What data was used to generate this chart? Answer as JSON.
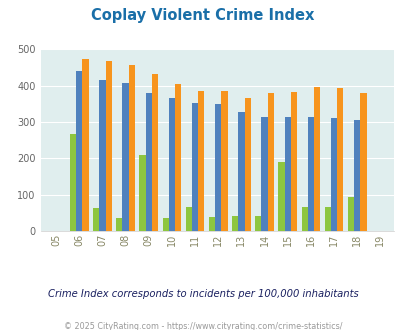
{
  "title": "Coplay Violent Crime Index",
  "years": [
    "05",
    "06",
    "07",
    "08",
    "09",
    "10",
    "11",
    "12",
    "13",
    "14",
    "15",
    "16",
    "17",
    "18",
    "19"
  ],
  "full_years": [
    2005,
    2006,
    2007,
    2008,
    2009,
    2010,
    2011,
    2012,
    2013,
    2014,
    2015,
    2016,
    2017,
    2018,
    2019
  ],
  "coplay": [
    0,
    267,
    62,
    35,
    210,
    35,
    65,
    38,
    40,
    40,
    190,
    65,
    65,
    95,
    0
  ],
  "pennsylvania": [
    0,
    440,
    417,
    408,
    380,
    367,
    353,
    350,
    328,
    315,
    315,
    315,
    311,
    306,
    0
  ],
  "national": [
    0,
    473,
    468,
    456,
    433,
    406,
    387,
    387,
    366,
    379,
    383,
    397,
    394,
    380,
    0
  ],
  "coplay_color": "#8dc63f",
  "pennsylvania_color": "#4f81bd",
  "national_color": "#f7941d",
  "bg_color": "#e0eeee",
  "ylim": [
    0,
    500
  ],
  "yticks": [
    0,
    100,
    200,
    300,
    400,
    500
  ],
  "subtitle": "Crime Index corresponds to incidents per 100,000 inhabitants",
  "footer": "© 2025 CityRating.com - https://www.cityrating.com/crime-statistics/",
  "title_color": "#1a6fa8",
  "subtitle_color": "#1a2060",
  "footer_color": "#999999",
  "tick_color": "#888866",
  "legend_label_color": "#333333"
}
